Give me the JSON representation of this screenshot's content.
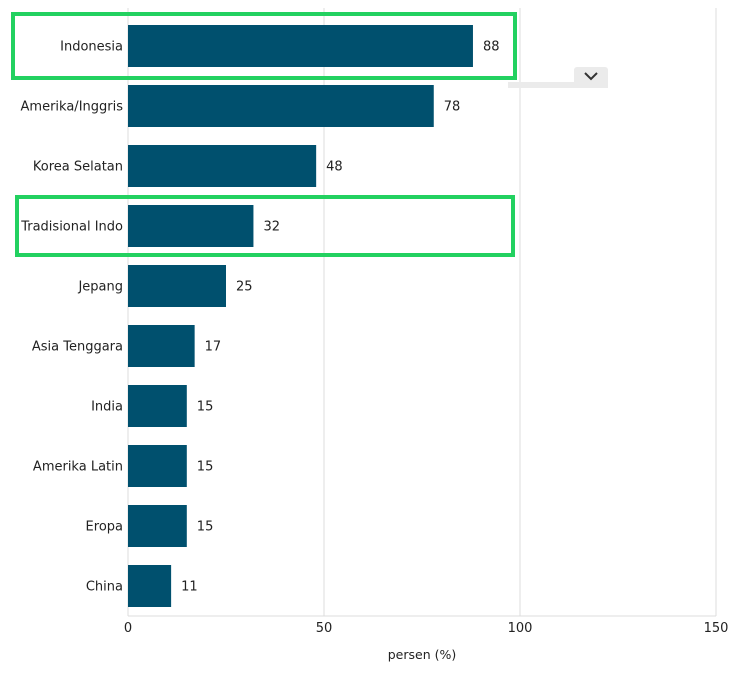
{
  "chart_data": {
    "type": "bar",
    "orientation": "horizontal",
    "categories": [
      "Indonesia",
      "Amerika/Inggris",
      "Korea Selatan",
      "Tradisional Indo",
      "Jepang",
      "Asia Tenggara",
      "India",
      "Amerika Latin",
      "Eropa",
      "China"
    ],
    "values": [
      88,
      78,
      48,
      32,
      25,
      17,
      15,
      15,
      15,
      11
    ],
    "xlabel": "persen (%)",
    "xlim": [
      0,
      150
    ],
    "xticks": [
      0,
      50,
      100,
      150
    ],
    "grid": "vertical",
    "bar_color": "#00506e",
    "highlighted_categories": [
      "Indonesia",
      "Tradisional Indo"
    ]
  },
  "colors": {
    "highlight": "#22d160",
    "grid": "#dcdcdc",
    "dropdown_bg": "#ebebeb"
  },
  "controls": {
    "dropdown_icon": "chevron-down-icon"
  }
}
